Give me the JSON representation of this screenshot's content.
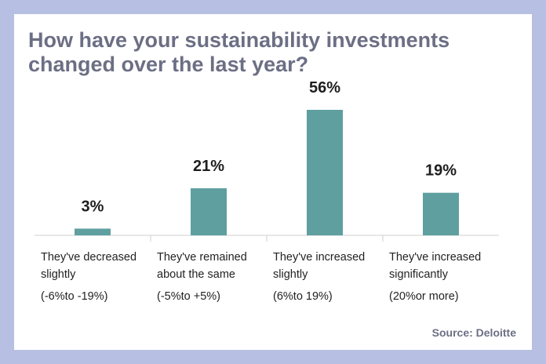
{
  "colors": {
    "background": "#b7c0e2",
    "card": "#ffffff",
    "bar": "#5f9fa0",
    "title": "#6c6f84",
    "axis": "#cfcfcf"
  },
  "chart_data": {
    "type": "bar",
    "title_lines": [
      "How have your sustainability investments",
      "changed over the last year?"
    ],
    "categories": [
      [
        "They've decreased",
        "slightly",
        "(-6%to  -19%)"
      ],
      [
        "They've remained",
        "about the same",
        "(-5%to  +5%)"
      ],
      [
        "They've increased",
        "slightly",
        "(6%to  19%)"
      ],
      [
        "They've increased",
        "significantly",
        "(20%or more)"
      ]
    ],
    "values": [
      3,
      21,
      56,
      19
    ],
    "value_labels": [
      "3%",
      "21%",
      "56%",
      "19%"
    ],
    "ylim": [
      0,
      56
    ],
    "xlabel": "",
    "ylabel": "",
    "grid": false,
    "source": "Source: Deloitte"
  }
}
